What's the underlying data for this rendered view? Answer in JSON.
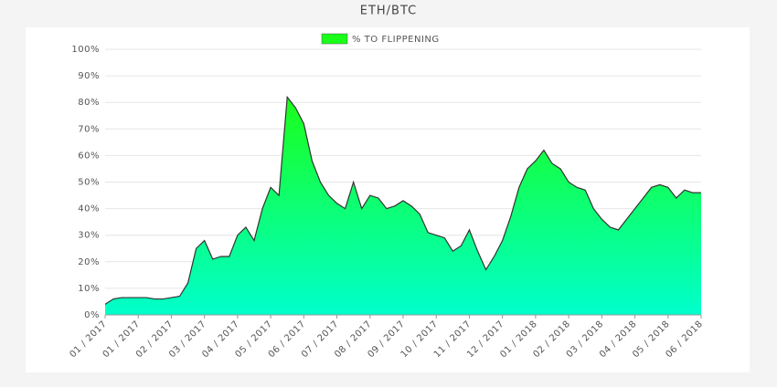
{
  "chart_data": {
    "type": "area",
    "title": "ETH/BTC",
    "x": [
      0,
      0.25,
      0.5,
      0.75,
      1,
      1.25,
      1.5,
      1.75,
      2,
      2.25,
      2.5,
      2.75,
      3,
      3.25,
      3.5,
      3.75,
      4,
      4.25,
      4.5,
      4.75,
      5,
      5.25,
      5.5,
      5.75,
      6,
      6.25,
      6.5,
      6.75,
      7,
      7.25,
      7.5,
      7.75,
      8,
      8.25,
      8.5,
      8.75,
      9,
      9.25,
      9.5,
      9.75,
      10,
      10.25,
      10.5,
      10.75,
      11,
      11.25,
      11.5,
      11.75,
      12,
      12.25,
      12.5,
      12.75,
      13,
      13.25,
      13.5,
      13.75,
      14,
      14.25,
      14.5,
      14.75,
      15,
      15.25,
      15.5,
      15.75,
      16,
      16.25,
      16.5,
      16.75,
      17,
      17.25,
      17.5,
      17.75,
      18
    ],
    "series": [
      {
        "name": "% TO FLIPPENING",
        "color": "#1aff1a",
        "bottom_color": "#00ffcc",
        "line_color": "#333333",
        "values": [
          4,
          6,
          6.5,
          6.5,
          6.5,
          6.5,
          6,
          6,
          6.5,
          7,
          12,
          25,
          28,
          21,
          22,
          22,
          30,
          33,
          28,
          40,
          48,
          45,
          82,
          78,
          72,
          58,
          50,
          45,
          42,
          40,
          50,
          40,
          45,
          44,
          40,
          41,
          43,
          41,
          38,
          31,
          30,
          29,
          24,
          26,
          32,
          24,
          17,
          22,
          28,
          37,
          48,
          55,
          58,
          62,
          57,
          55,
          50,
          48,
          47,
          40,
          36,
          33,
          32,
          36,
          40,
          44,
          48,
          49,
          48,
          44,
          47,
          46,
          46
        ]
      }
    ],
    "xlim": [
      0,
      18
    ],
    "xticks": [
      {
        "value": 0,
        "label": "01 / 2017"
      },
      {
        "value": 1,
        "label": "01 / 2017"
      },
      {
        "value": 2,
        "label": "02 / 2017"
      },
      {
        "value": 3,
        "label": "03 / 2017"
      },
      {
        "value": 4,
        "label": "04 / 2017"
      },
      {
        "value": 5,
        "label": "05 / 2017"
      },
      {
        "value": 6,
        "label": "06 / 2017"
      },
      {
        "value": 7,
        "label": "07 / 2017"
      },
      {
        "value": 8,
        "label": "08 / 2017"
      },
      {
        "value": 9,
        "label": "09 / 2017"
      },
      {
        "value": 10,
        "label": "10 / 2017"
      },
      {
        "value": 11,
        "label": "11 / 2017"
      },
      {
        "value": 12,
        "label": "12 / 2017"
      },
      {
        "value": 13,
        "label": "01 / 2018"
      },
      {
        "value": 14,
        "label": "02 / 2018"
      },
      {
        "value": 15,
        "label": "03 / 2018"
      },
      {
        "value": 16,
        "label": "04 / 2018"
      },
      {
        "value": 17,
        "label": "05 / 2018"
      },
      {
        "value": 18,
        "label": "06 / 2018"
      }
    ],
    "ylim": [
      0,
      100
    ],
    "yticks": [
      {
        "value": 0,
        "label": "0%"
      },
      {
        "value": 10,
        "label": "10%"
      },
      {
        "value": 20,
        "label": "20%"
      },
      {
        "value": 30,
        "label": "30%"
      },
      {
        "value": 40,
        "label": "40%"
      },
      {
        "value": 50,
        "label": "50%"
      },
      {
        "value": 60,
        "label": "60%"
      },
      {
        "value": 70,
        "label": "70%"
      },
      {
        "value": 80,
        "label": "80%"
      },
      {
        "value": 90,
        "label": "90%"
      },
      {
        "value": 100,
        "label": "100%"
      }
    ],
    "grid": true,
    "legend": "top"
  }
}
